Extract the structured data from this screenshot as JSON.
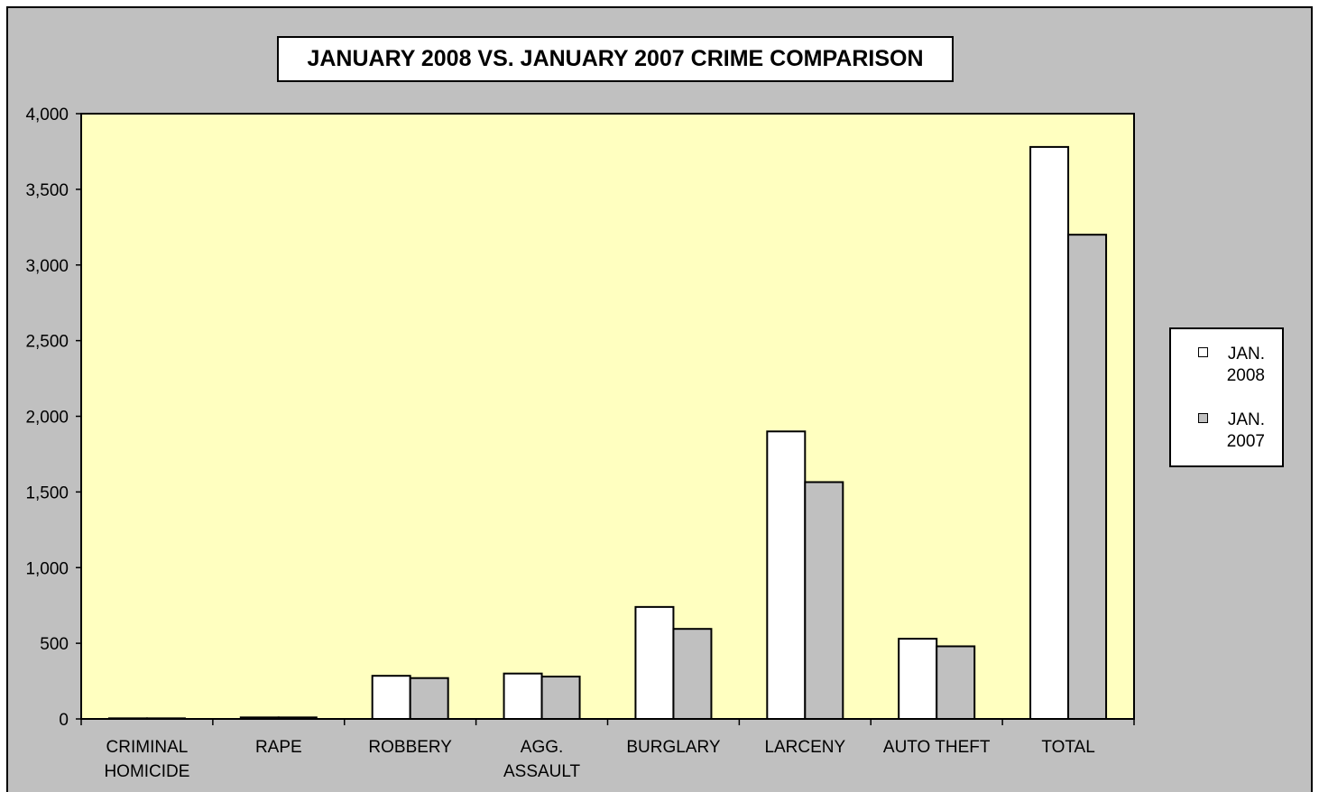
{
  "chart_data": {
    "type": "bar",
    "title": "JANUARY 2008 VS. JANUARY 2007 CRIME COMPARISON",
    "xlabel": "",
    "ylabel": "",
    "ylim": [
      0,
      4000
    ],
    "yticks": [
      0,
      500,
      1000,
      1500,
      2000,
      2500,
      3000,
      3500,
      4000
    ],
    "ytick_labels": [
      "0",
      "500",
      "1,000",
      "1,500",
      "2,000",
      "2,500",
      "3,000",
      "3,500",
      "4,000"
    ],
    "categories": [
      "CRIMINAL HOMICIDE",
      "RAPE",
      "ROBBERY",
      "AGG. ASSAULT",
      "BURGLARY",
      "LARCENY",
      "AUTO THEFT",
      "TOTAL"
    ],
    "category_lines": [
      [
        "CRIMINAL",
        "HOMICIDE"
      ],
      [
        "RAPE"
      ],
      [
        "ROBBERY"
      ],
      [
        "AGG.",
        "ASSAULT"
      ],
      [
        "BURGLARY"
      ],
      [
        "LARCENY"
      ],
      [
        "AUTO THEFT"
      ],
      [
        "TOTAL"
      ]
    ],
    "series": [
      {
        "name": "JAN. 2008",
        "color": "#ffffff",
        "values": [
          4,
          10,
          285,
          300,
          740,
          1900,
          530,
          3780
        ]
      },
      {
        "name": "JAN. 2007",
        "color": "#c0c0c0",
        "values": [
          4,
          10,
          270,
          280,
          595,
          1565,
          480,
          3200
        ]
      }
    ],
    "plot_background": "#ffffc0",
    "frame_background": "#c0c0c0",
    "grid": false,
    "legend_position": "right"
  }
}
